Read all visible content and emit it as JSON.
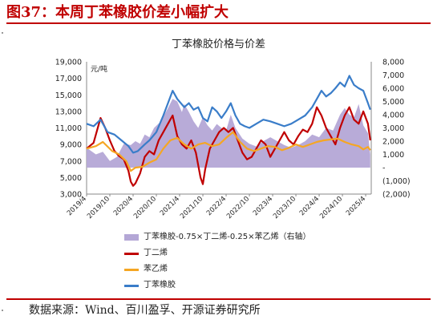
{
  "figure": {
    "title": "图37：本周丁苯橡胶价差小幅扩大",
    "source": "数据来源：Wind、百川盈孚、开源证券研究所"
  },
  "chart_data": {
    "type": "line",
    "title": "丁苯橡胶价格与价差",
    "left_axis_unit": "元/吨",
    "left_ylim": [
      3000,
      19000
    ],
    "left_ticks": [
      "3,000",
      "5,000",
      "7,000",
      "9,000",
      "11,000",
      "13,000",
      "15,000",
      "17,000",
      "19,000"
    ],
    "right_ylim": [
      -2000,
      8000
    ],
    "right_ticks": [
      "(2,000)",
      "(1,000)",
      "-",
      "1,000",
      "2,000",
      "3,000",
      "4,000",
      "5,000",
      "6,000",
      "7,000",
      "8,000"
    ],
    "x_ticks": [
      "2019/4",
      "2019/10",
      "2020/4",
      "2020/10",
      "2021/4",
      "2021/10",
      "2022/4",
      "2022/10",
      "2023/4",
      "2023/10",
      "2024/4",
      "2024/10",
      "2025/4"
    ],
    "x_range": [
      "2019-04",
      "2025-05"
    ],
    "colors": {
      "spread": "#b4a7d6",
      "butadiene": "#c00000",
      "styrene": "#f5a623",
      "sbr": "#3a7dc9"
    },
    "series": [
      {
        "name": "丁苯橡胶-0.75×丁二烯-0.25×苯乙烯（右轴）",
        "axis": "right",
        "kind": "area",
        "x": [
          2019.25,
          2019.45,
          2019.6,
          2019.75,
          2019.9,
          2020.05,
          2020.2,
          2020.3,
          2020.4,
          2020.5,
          2020.6,
          2020.7,
          2020.85,
          2021.0,
          2021.1,
          2021.2,
          2021.3,
          2021.35,
          2021.45,
          2021.55,
          2021.65,
          2021.75,
          2021.85,
          2021.95,
          2022.05,
          2022.15,
          2022.25,
          2022.35,
          2022.45,
          2022.6,
          2022.75,
          2022.9,
          2023.05,
          2023.2,
          2023.35,
          2023.5,
          2023.65,
          2023.8,
          2023.95,
          2024.1,
          2024.25,
          2024.4,
          2024.55,
          2024.7,
          2024.8,
          2024.9,
          2025.0,
          2025.1,
          2025.2,
          2025.3,
          2025.35
        ],
        "values": [
          1500,
          1000,
          1200,
          500,
          800,
          1800,
          1700,
          2000,
          1800,
          2500,
          2300,
          3000,
          3500,
          4500,
          5200,
          5000,
          4200,
          4800,
          4200,
          3500,
          3000,
          3800,
          3200,
          2800,
          3300,
          3000,
          2800,
          4000,
          3000,
          2200,
          1800,
          1600,
          2000,
          2300,
          2000,
          1700,
          1500,
          1700,
          2000,
          2500,
          2300,
          3000,
          2800,
          4000,
          4500,
          4000,
          3800,
          4800,
          3200,
          2600,
          1000
        ]
      },
      {
        "name": "丁二烯",
        "axis": "left",
        "kind": "line",
        "x": [
          2019.25,
          2019.4,
          2019.55,
          2019.65,
          2019.75,
          2019.85,
          2019.95,
          2020.05,
          2020.15,
          2020.2,
          2020.25,
          2020.3,
          2020.4,
          2020.5,
          2020.6,
          2020.7,
          2020.8,
          2020.9,
          2021.0,
          2021.1,
          2021.2,
          2021.3,
          2021.4,
          2021.5,
          2021.6,
          2021.7,
          2021.75,
          2021.8,
          2021.9,
          2022.0,
          2022.1,
          2022.2,
          2022.3,
          2022.4,
          2022.5,
          2022.6,
          2022.7,
          2022.8,
          2022.9,
          2023.0,
          2023.1,
          2023.2,
          2023.3,
          2023.4,
          2023.5,
          2023.6,
          2023.7,
          2023.8,
          2023.9,
          2024.0,
          2024.1,
          2024.2,
          2024.3,
          2024.4,
          2024.5,
          2024.6,
          2024.7,
          2024.8,
          2024.9,
          2025.0,
          2025.1,
          2025.2,
          2025.3,
          2025.35
        ],
        "values": [
          8500,
          9200,
          12200,
          11000,
          9500,
          8200,
          7600,
          7200,
          5800,
          4500,
          4000,
          4300,
          5500,
          7500,
          8200,
          7800,
          9500,
          10500,
          11500,
          12500,
          10000,
          9000,
          8500,
          9500,
          8000,
          5000,
          4200,
          6000,
          8500,
          9500,
          10500,
          11000,
          10500,
          11000,
          9500,
          8000,
          7200,
          7500,
          8500,
          9500,
          9000,
          7500,
          8500,
          9500,
          10500,
          9500,
          9000,
          10000,
          10800,
          10500,
          11500,
          13500,
          12500,
          11000,
          10000,
          9000,
          11000,
          12500,
          13500,
          12000,
          11500,
          13000,
          11500,
          9500
        ]
      },
      {
        "name": "苯乙烯",
        "axis": "left",
        "kind": "line",
        "x": [
          2019.25,
          2019.45,
          2019.6,
          2019.8,
          2019.95,
          2020.1,
          2020.2,
          2020.3,
          2020.45,
          2020.6,
          2020.75,
          2020.9,
          2021.05,
          2021.2,
          2021.35,
          2021.5,
          2021.65,
          2021.8,
          2021.95,
          2022.1,
          2022.25,
          2022.4,
          2022.55,
          2022.7,
          2022.85,
          2023.0,
          2023.15,
          2023.3,
          2023.45,
          2023.6,
          2023.75,
          2023.9,
          2024.05,
          2024.2,
          2024.35,
          2024.5,
          2024.65,
          2024.8,
          2024.95,
          2025.1,
          2025.2,
          2025.3,
          2025.35
        ],
        "values": [
          8500,
          8800,
          9300,
          8200,
          7800,
          7000,
          5800,
          6200,
          6300,
          6800,
          7200,
          8500,
          9500,
          9800,
          9000,
          8500,
          9000,
          9200,
          8800,
          9000,
          9800,
          10500,
          9300,
          8500,
          8200,
          8500,
          8800,
          8700,
          8300,
          8600,
          9000,
          8700,
          9000,
          9300,
          9500,
          9600,
          9700,
          9300,
          9000,
          8800,
          8400,
          8700,
          8300
        ]
      },
      {
        "name": "丁苯橡胶",
        "axis": "left",
        "kind": "line",
        "x": [
          2019.25,
          2019.4,
          2019.55,
          2019.7,
          2019.85,
          2020.0,
          2020.15,
          2020.25,
          2020.35,
          2020.5,
          2020.6,
          2020.75,
          2020.9,
          2021.0,
          2021.1,
          2021.2,
          2021.35,
          2021.45,
          2021.55,
          2021.65,
          2021.75,
          2021.85,
          2021.95,
          2022.05,
          2022.15,
          2022.25,
          2022.35,
          2022.45,
          2022.55,
          2022.65,
          2022.75,
          2022.9,
          2023.05,
          2023.2,
          2023.35,
          2023.5,
          2023.65,
          2023.8,
          2023.95,
          2024.1,
          2024.2,
          2024.3,
          2024.4,
          2024.5,
          2024.6,
          2024.7,
          2024.8,
          2024.9,
          2025.0,
          2025.1,
          2025.2,
          2025.3,
          2025.35
        ],
        "values": [
          11500,
          11200,
          12000,
          10500,
          10200,
          9500,
          8800,
          8000,
          8200,
          9000,
          9500,
          10500,
          12500,
          14000,
          15500,
          14500,
          13500,
          14000,
          13200,
          13500,
          12200,
          11800,
          13500,
          13000,
          12200,
          13000,
          14000,
          12500,
          11500,
          11200,
          11000,
          11500,
          12000,
          11800,
          11500,
          11200,
          11500,
          12000,
          12500,
          13500,
          14500,
          15500,
          14800,
          15200,
          15800,
          16500,
          16000,
          17300,
          16200,
          15800,
          15500,
          14000,
          13200
        ]
      }
    ]
  }
}
